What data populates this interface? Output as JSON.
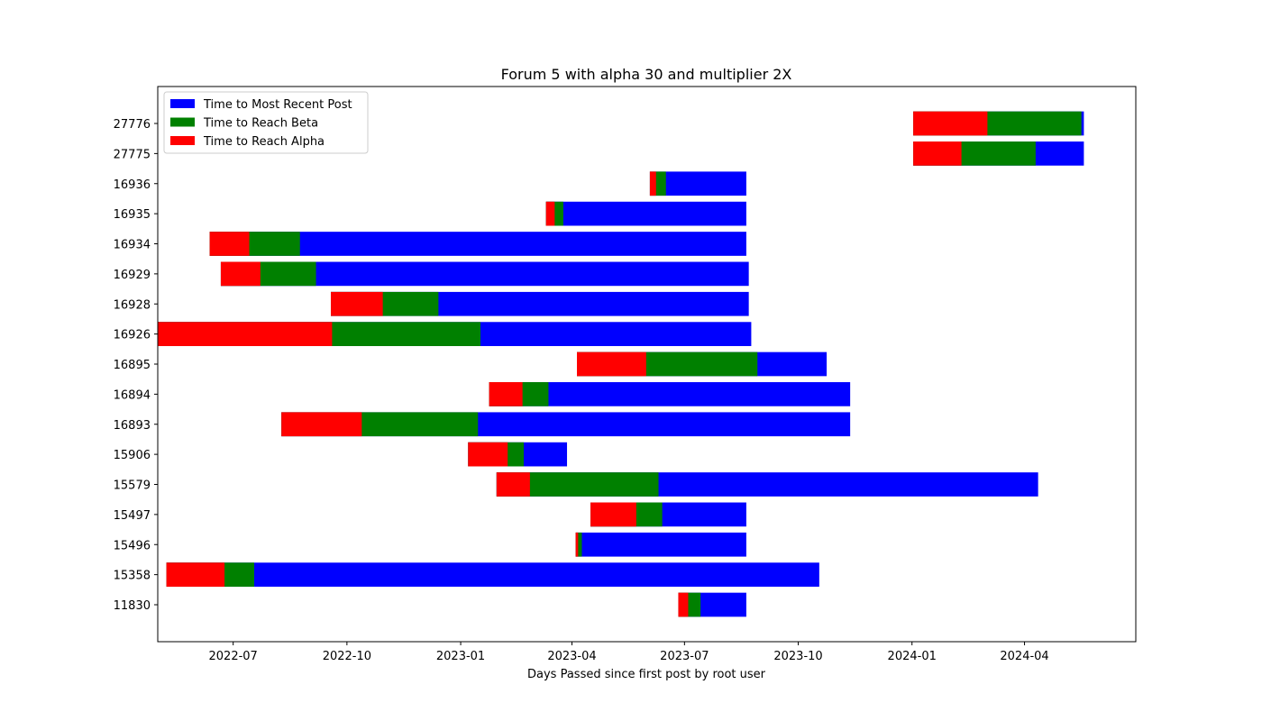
{
  "chart_data": {
    "type": "bar",
    "orientation": "horizontal-stacked-gantt",
    "title": "Forum 5 with alpha 30 and multiplier 2X",
    "xlabel": "Days Passed since first post by root user",
    "ylabel": "",
    "xlim": [
      "2022-05-01",
      "2024-06-30"
    ],
    "x_ticks": [
      "2022-07-01",
      "2022-10-01",
      "2023-01-01",
      "2023-04-01",
      "2023-07-01",
      "2023-10-01",
      "2024-01-01",
      "2024-04-01"
    ],
    "x_tick_labels": [
      "2022-07",
      "2022-10",
      "2023-01",
      "2023-04",
      "2023-07",
      "2023-10",
      "2024-01",
      "2024-04"
    ],
    "grid": false,
    "legend_position": "top-left",
    "series": [
      {
        "name": "Time to Most Recent Post",
        "color": "#0000ff"
      },
      {
        "name": "Time to Reach Beta",
        "color": "#008000"
      },
      {
        "name": "Time to Reach Alpha",
        "color": "#ff0000"
      }
    ],
    "categories": [
      "11830",
      "15358",
      "15496",
      "15497",
      "15579",
      "15906",
      "16893",
      "16894",
      "16895",
      "16926",
      "16928",
      "16929",
      "16934",
      "16935",
      "16936",
      "27775",
      "27776"
    ],
    "bars": [
      {
        "id": "11830",
        "start": "2023-06-26",
        "alpha": "2023-07-04",
        "beta": "2023-07-14",
        "recent": "2023-08-20"
      },
      {
        "id": "15358",
        "start": "2022-05-08",
        "alpha": "2022-06-24",
        "beta": "2022-07-18",
        "recent": "2023-10-18"
      },
      {
        "id": "15496",
        "start": "2023-04-04",
        "alpha": "2023-04-06",
        "beta": "2023-04-09",
        "recent": "2023-08-20"
      },
      {
        "id": "15497",
        "start": "2023-04-16",
        "alpha": "2023-05-23",
        "beta": "2023-06-13",
        "recent": "2023-08-20"
      },
      {
        "id": "15579",
        "start": "2023-01-30",
        "alpha": "2023-02-26",
        "beta": "2023-06-10",
        "recent": "2024-04-12"
      },
      {
        "id": "15906",
        "start": "2023-01-07",
        "alpha": "2023-02-08",
        "beta": "2023-02-21",
        "recent": "2023-03-28"
      },
      {
        "id": "16893",
        "start": "2022-08-09",
        "alpha": "2022-10-13",
        "beta": "2023-01-15",
        "recent": "2023-11-12"
      },
      {
        "id": "16894",
        "start": "2023-01-24",
        "alpha": "2023-02-20",
        "beta": "2023-03-13",
        "recent": "2023-11-12"
      },
      {
        "id": "16895",
        "start": "2023-04-05",
        "alpha": "2023-05-31",
        "beta": "2023-08-29",
        "recent": "2023-10-24"
      },
      {
        "id": "16926",
        "start": "2022-05-01",
        "alpha": "2022-09-19",
        "beta": "2023-01-17",
        "recent": "2023-08-24"
      },
      {
        "id": "16928",
        "start": "2022-09-18",
        "alpha": "2022-10-30",
        "beta": "2022-12-14",
        "recent": "2023-08-22"
      },
      {
        "id": "16929",
        "start": "2022-06-21",
        "alpha": "2022-07-23",
        "beta": "2022-09-06",
        "recent": "2023-08-22"
      },
      {
        "id": "16934",
        "start": "2022-06-12",
        "alpha": "2022-07-14",
        "beta": "2022-08-24",
        "recent": "2023-08-20"
      },
      {
        "id": "16935",
        "start": "2023-03-11",
        "alpha": "2023-03-18",
        "beta": "2023-03-25",
        "recent": "2023-08-20"
      },
      {
        "id": "16936",
        "start": "2023-06-03",
        "alpha": "2023-06-08",
        "beta": "2023-06-16",
        "recent": "2023-08-20"
      },
      {
        "id": "27775",
        "start": "2024-01-02",
        "alpha": "2024-02-10",
        "beta": "2024-04-10",
        "recent": "2024-05-19"
      },
      {
        "id": "27776",
        "start": "2024-01-02",
        "alpha": "2024-03-02",
        "beta": "2024-05-17",
        "recent": "2024-05-19"
      }
    ]
  }
}
